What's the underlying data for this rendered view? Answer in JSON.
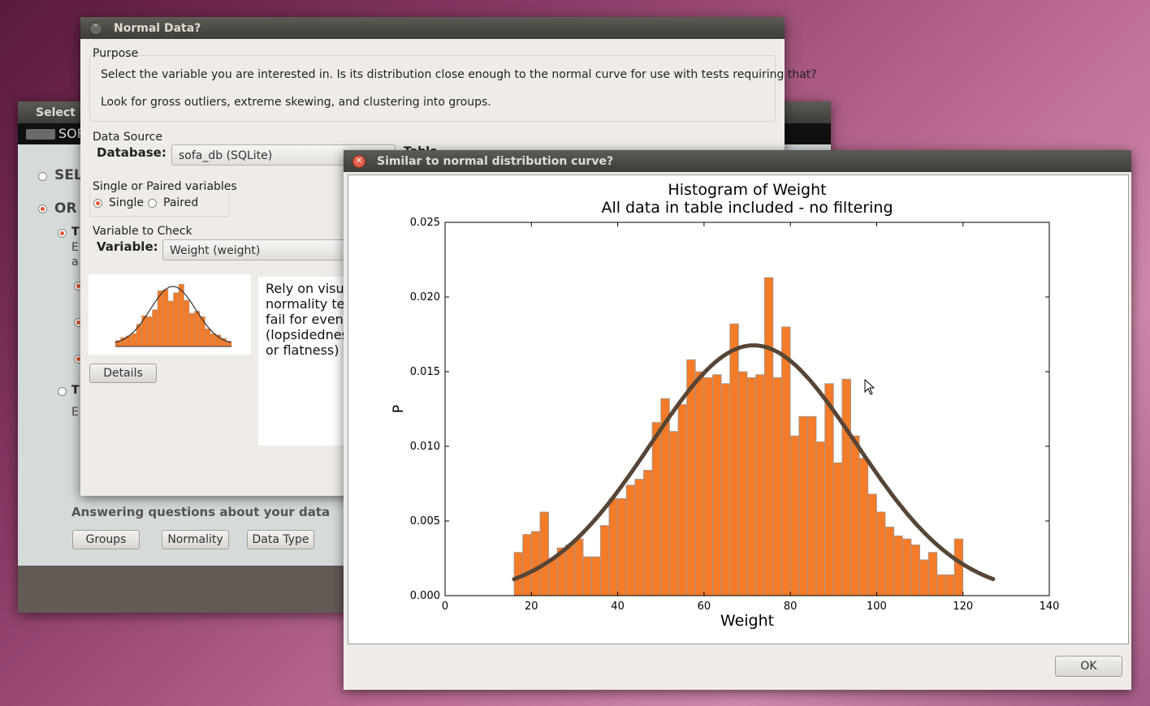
{
  "back_window": {
    "title": "Select",
    "logo_text": "SOF",
    "radio_sel": "SEL",
    "radio_or": "OR",
    "radio_t1": "T",
    "text_e": "E",
    "text_a": "a",
    "radio_t2": "T",
    "text_e2": "E",
    "answering": "Answering questions about your data",
    "groups_btn": "Groups",
    "normality_btn": "Normality",
    "datatype_btn": "Data Type"
  },
  "normal_window": {
    "title": "Normal Data?",
    "purpose_label": "Purpose",
    "purpose_line1": "Select the variable you are interested in. Is its distribution close enough to the normal curve for use with tests requiring that?",
    "purpose_line2": "Look for gross outliers, extreme skewing, and clustering into groups.",
    "datasource_label": "Data Source",
    "database_label": "Database:",
    "database_value": "sofa_db (SQLite)",
    "table_label": "Table",
    "single_paired_label": "Single or Paired variables",
    "single_label": "Single",
    "paired_label": "Paired",
    "variable_check_label": "Variable to Check",
    "variable_label": "Variable:",
    "variable_value": "Weight (weight)",
    "help_lines": [
      "Rely on visu",
      "normality te",
      "fail for even",
      "(lopsidednes",
      "or flatness)"
    ],
    "details_btn": "Details"
  },
  "chart_window": {
    "title": "Similar to normal distribution curve?",
    "ok_btn": "OK",
    "bar_color": "#f47b28",
    "curve_color": "#574535"
  },
  "chart_data": {
    "type": "bar",
    "title": "Histogram of Weight",
    "subtitle": "All data in table included - no filtering",
    "xlabel": "Weight",
    "ylabel": "P",
    "xlim": [
      0,
      140
    ],
    "ylim": [
      0,
      0.025
    ],
    "xticks": [
      "0",
      "20",
      "40",
      "60",
      "80",
      "100",
      "120",
      "140"
    ],
    "yticks": [
      "0.000",
      "0.005",
      "0.010",
      "0.015",
      "0.020",
      "0.025"
    ],
    "bin_start": 16,
    "bin_width": 2,
    "values": [
      0.0029,
      0.0041,
      0.0043,
      0.0056,
      0.0025,
      0.0032,
      0.0034,
      0.0038,
      0.0026,
      0.0026,
      0.0047,
      0.0065,
      0.0065,
      0.0074,
      0.0078,
      0.0084,
      0.0116,
      0.0132,
      0.011,
      0.0128,
      0.0158,
      0.015,
      0.0146,
      0.0148,
      0.0142,
      0.0182,
      0.015,
      0.0146,
      0.0148,
      0.0213,
      0.0146,
      0.018,
      0.0107,
      0.012,
      0.012,
      0.0103,
      0.0142,
      0.0089,
      0.0145,
      0.0107,
      0.0092,
      0.0068,
      0.0056,
      0.0046,
      0.004,
      0.0038,
      0.0034,
      0.0024,
      0.0029,
      0.0014,
      0.0014,
      0.0038
    ],
    "normal_curve": {
      "mean": 71.5,
      "sd": 23.8,
      "x_range": [
        16,
        127
      ]
    }
  }
}
